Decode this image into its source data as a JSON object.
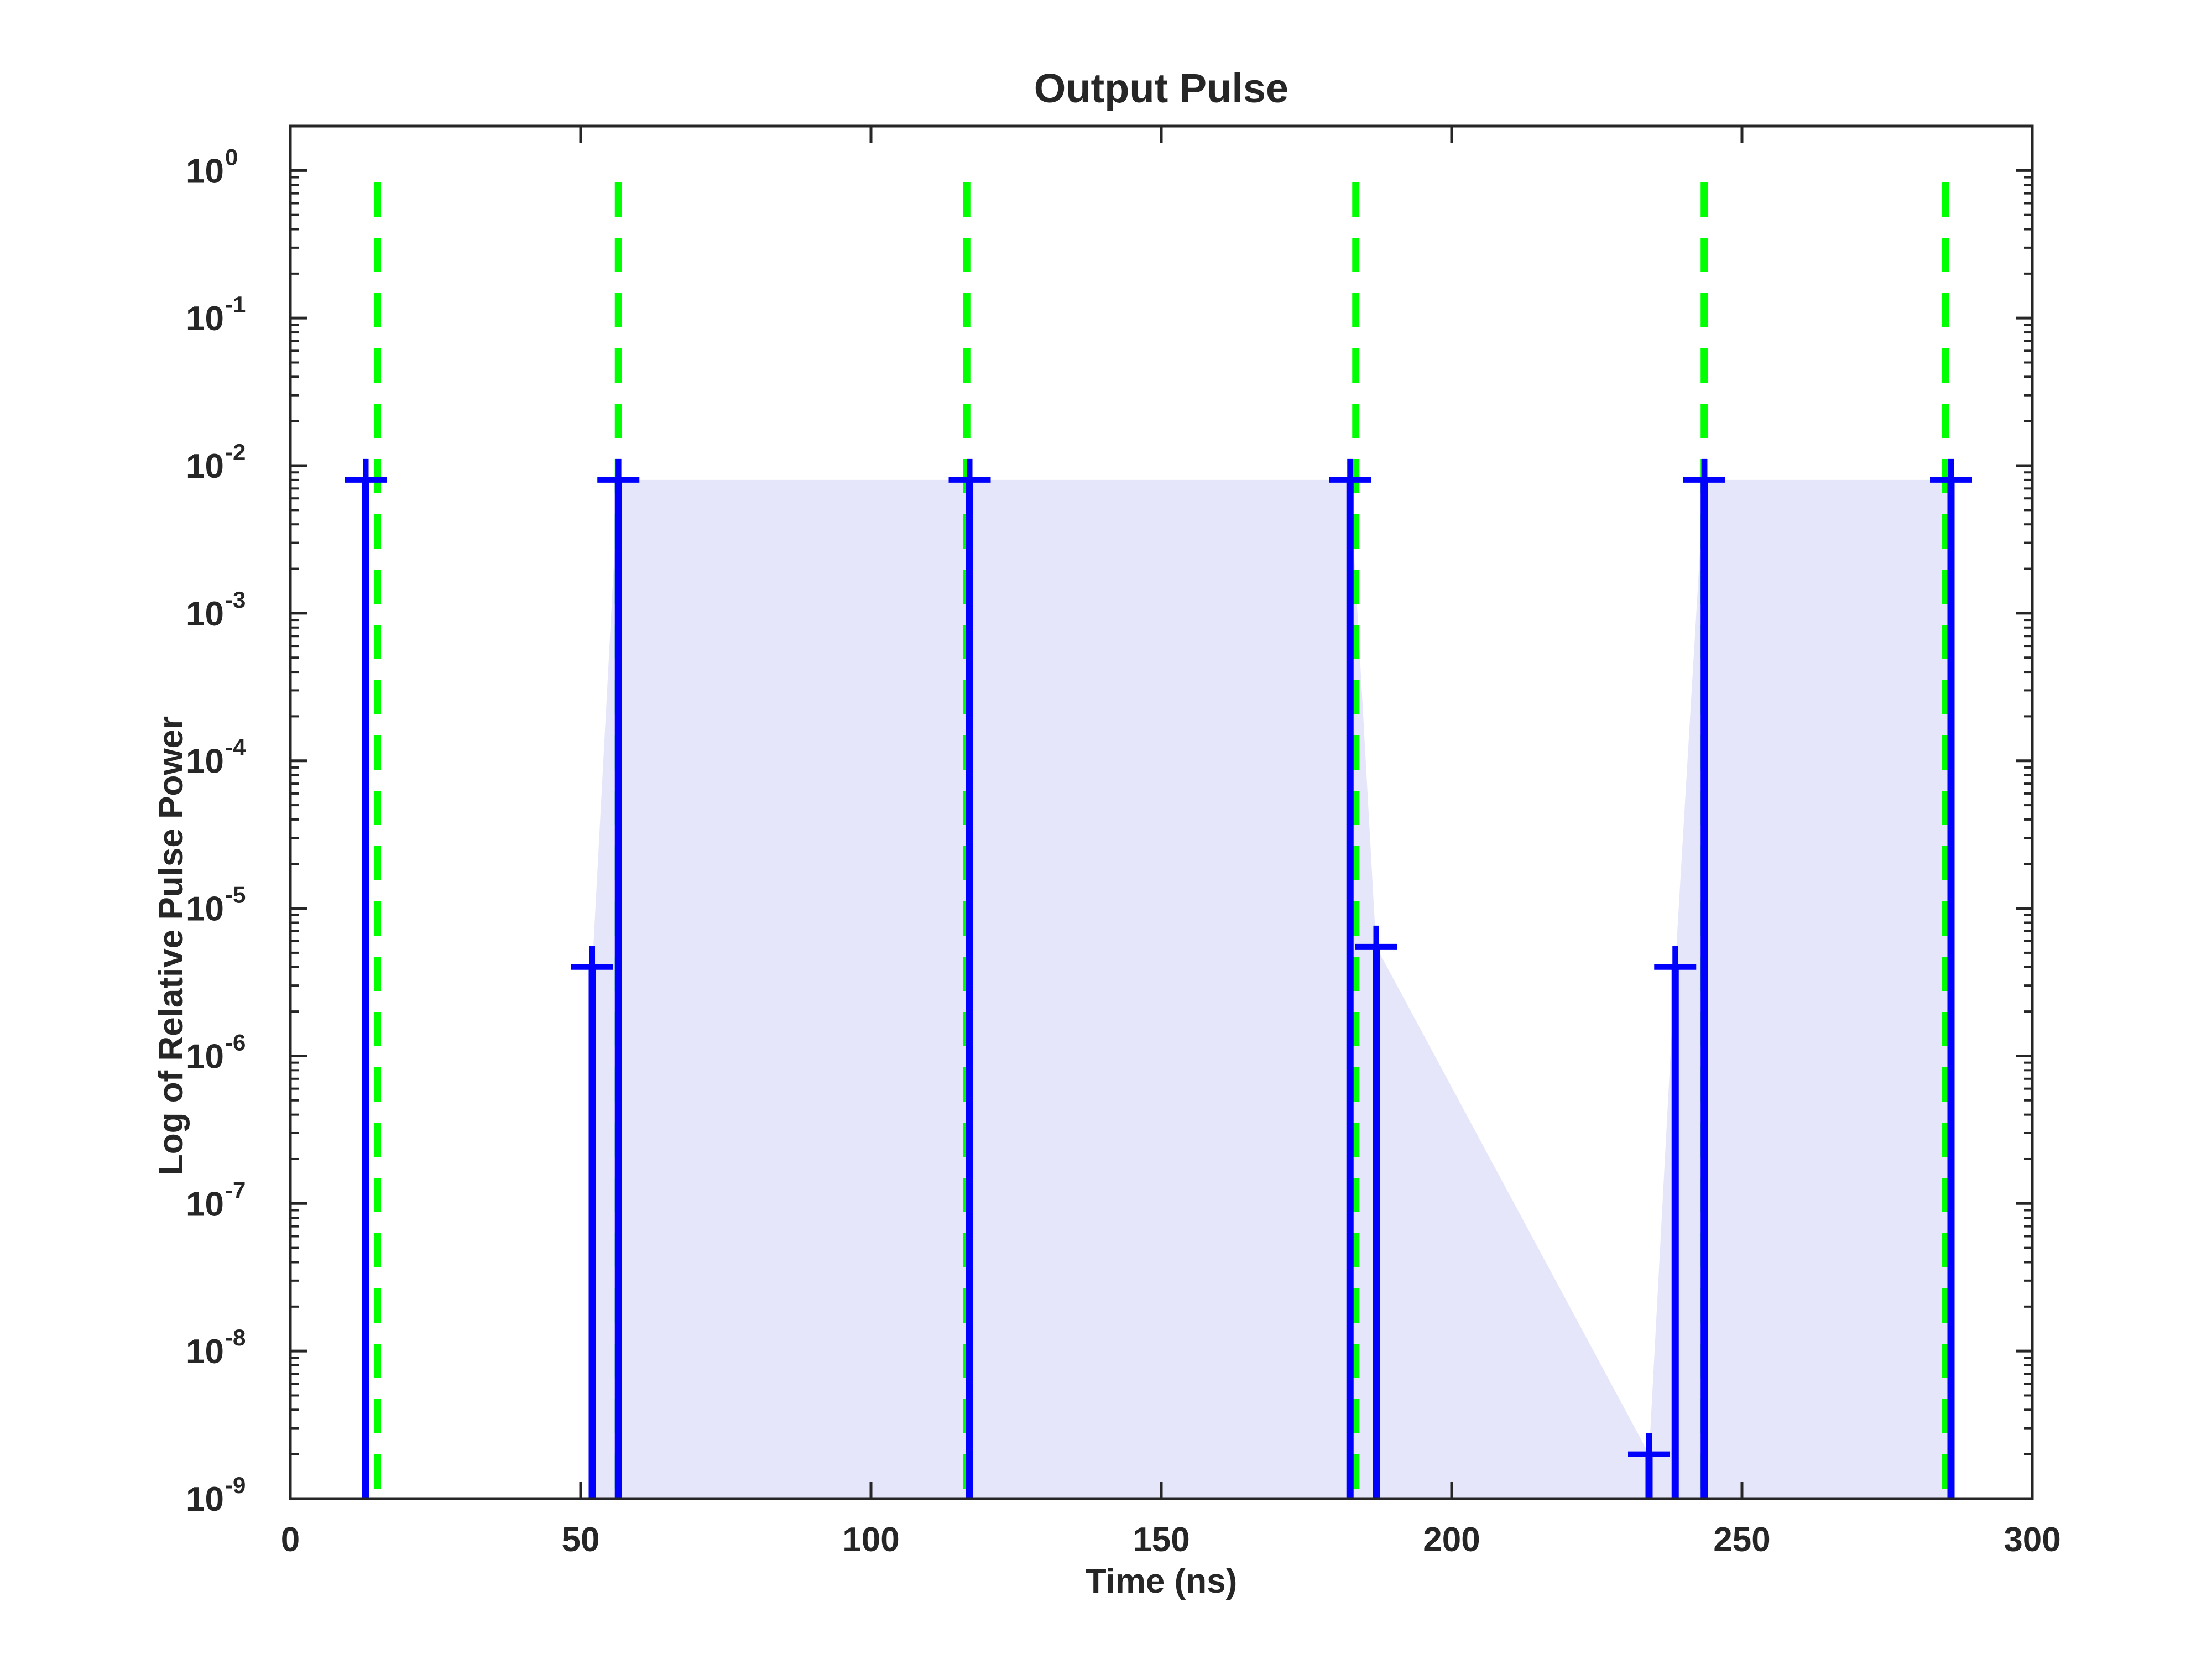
{
  "chart_data": {
    "type": "line",
    "title": "Output Pulse",
    "xlabel": "Time (ns)",
    "ylabel": "Log of Relative Pulse Power",
    "xlim": [
      0,
      300
    ],
    "ylim": [
      1e-09,
      2
    ],
    "yscale": "log",
    "grid": false,
    "x_ticks": [
      "0",
      "50",
      "100",
      "150",
      "200",
      "250",
      "300"
    ],
    "y_ticks": [
      {
        "base": "10",
        "exp": "-9"
      },
      {
        "base": "10",
        "exp": "-8"
      },
      {
        "base": "10",
        "exp": "-7"
      },
      {
        "base": "10",
        "exp": "-6"
      },
      {
        "base": "10",
        "exp": "-5"
      },
      {
        "base": "10",
        "exp": "-4"
      },
      {
        "base": "10",
        "exp": "-3"
      },
      {
        "base": "10",
        "exp": "-2"
      },
      {
        "base": "10",
        "exp": "-1"
      },
      {
        "base": "10",
        "exp": "0"
      }
    ],
    "series": [
      {
        "kind": "stem",
        "color": "#0000ff",
        "points": [
          {
            "x": 13,
            "y": 0.008
          },
          {
            "x": 52,
            "y": 4e-06
          },
          {
            "x": 56.5,
            "y": 0.008
          },
          {
            "x": 117,
            "y": 0.008
          },
          {
            "x": 182.5,
            "y": 0.008
          },
          {
            "x": 187,
            "y": 5.5e-06
          },
          {
            "x": 234,
            "y": 2e-09
          },
          {
            "x": 238.5,
            "y": 4e-06
          },
          {
            "x": 243.5,
            "y": 0.008
          },
          {
            "x": 286,
            "y": 0.008
          }
        ]
      },
      {
        "kind": "reference-lines",
        "color": "#00ff00",
        "style": "dashed",
        "x": [
          15,
          56.5,
          116.5,
          183.5,
          243.5,
          285
        ]
      }
    ],
    "shaded_area": {
      "color": "#e6e6fa",
      "points": [
        {
          "x": 52,
          "y": 4e-06
        },
        {
          "x": 56.5,
          "y": 0.008
        },
        {
          "x": 117,
          "y": 0.008
        },
        {
          "x": 182.5,
          "y": 0.008
        },
        {
          "x": 187,
          "y": 5.5e-06
        },
        {
          "x": 234,
          "y": 2e-09
        },
        {
          "x": 238.5,
          "y": 4e-06
        },
        {
          "x": 243.5,
          "y": 0.008
        },
        {
          "x": 286,
          "y": 0.008
        }
      ]
    }
  }
}
